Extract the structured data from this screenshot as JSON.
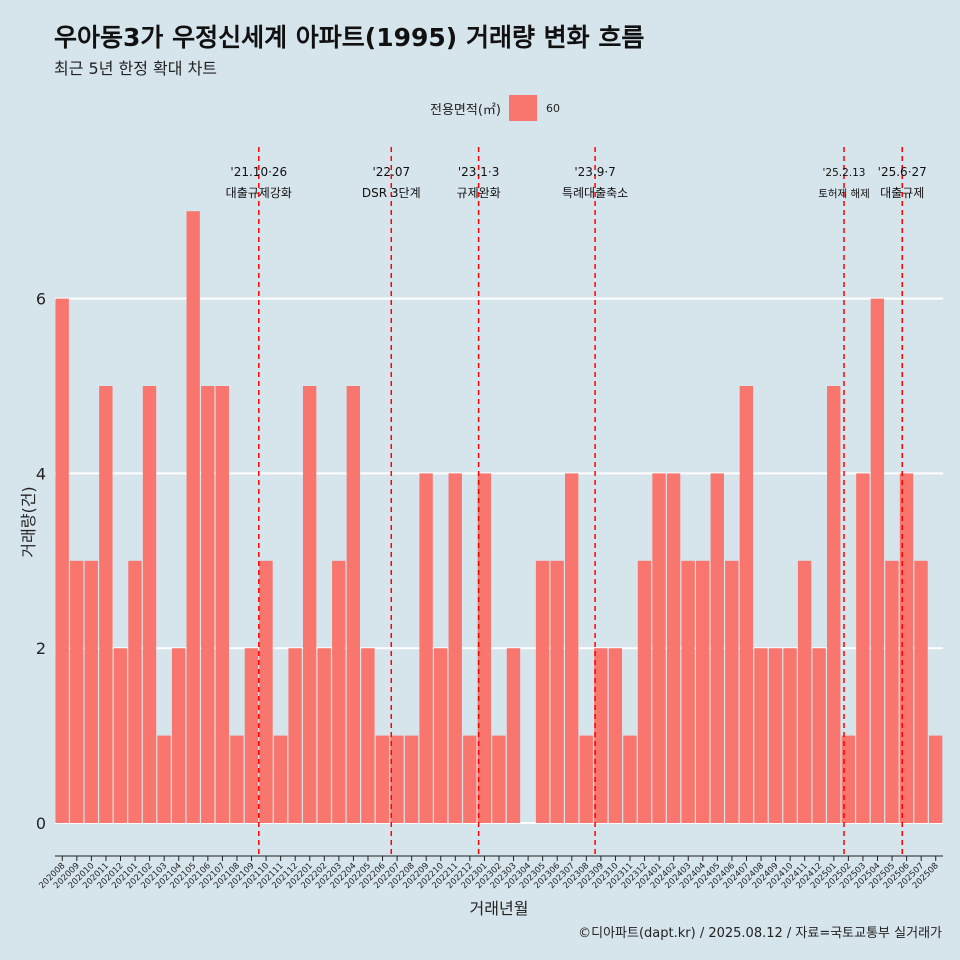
{
  "title": "우아동3가 우정신세계 아파트(1995) 거래량 변화 흐름",
  "subtitle": "최근 5년 한정 확대 차트",
  "caption": "©디아파트(dapt.kr) / 2025.08.12 / 자료=국토교통부 실거래가",
  "legend": {
    "title": "전용면적(㎡)",
    "items": [
      "60"
    ]
  },
  "colors": {
    "bar": "#f8766d",
    "background": "#d6e4ec",
    "grid": "#ffffff",
    "event_line": "#ff0000"
  },
  "chart_data": {
    "type": "bar",
    "xlabel": "거래년월",
    "ylabel": "거래량(건)",
    "ylim": [
      0,
      7
    ],
    "yticks": [
      0,
      2,
      4,
      6
    ],
    "grid": "horizontal",
    "legend_position": "top",
    "categories": [
      "202008",
      "202009",
      "202010",
      "202011",
      "202012",
      "202101",
      "202102",
      "202103",
      "202104",
      "202105",
      "202106",
      "202107",
      "202108",
      "202109",
      "202110",
      "202111",
      "202112",
      "202201",
      "202202",
      "202203",
      "202204",
      "202205",
      "202206",
      "202207",
      "202208",
      "202209",
      "202210",
      "202211",
      "202212",
      "202301",
      "202302",
      "202303",
      "202304",
      "202305",
      "202306",
      "202307",
      "202308",
      "202309",
      "202310",
      "202311",
      "202312",
      "202401",
      "202402",
      "202403",
      "202404",
      "202405",
      "202406",
      "202407",
      "202408",
      "202409",
      "202410",
      "202411",
      "202412",
      "202501",
      "202502",
      "202503",
      "202504",
      "202505",
      "202506",
      "202507",
      "202508"
    ],
    "series": [
      {
        "name": "60",
        "values": [
          6,
          3,
          3,
          5,
          2,
          3,
          5,
          1,
          2,
          7,
          5,
          5,
          1,
          2,
          3,
          1,
          2,
          5,
          2,
          3,
          5,
          2,
          1,
          1,
          1,
          4,
          2,
          4,
          1,
          4,
          1,
          2,
          0,
          3,
          3,
          4,
          1,
          2,
          2,
          1,
          3,
          4,
          4,
          3,
          3,
          4,
          3,
          5,
          2,
          2,
          2,
          3,
          2,
          5,
          1,
          4,
          6,
          3,
          4,
          3,
          1
        ]
      }
    ],
    "annotations": [
      {
        "x": 14.0,
        "date": "'21.10·26",
        "label": "대출규제강화"
      },
      {
        "x": 23.1,
        "date": "'22.07",
        "label": "DSR 3단계"
      },
      {
        "x": 29.1,
        "date": "'23.1·3",
        "label": "규제완화"
      },
      {
        "x": 37.1,
        "date": "'23.9·7",
        "label": "특례대출축소"
      },
      {
        "x": 54.2,
        "date": "'25.2.13",
        "label": "토허제 해제",
        "small": true
      },
      {
        "x": 58.2,
        "date": "'25.6·27",
        "label": "대출규제"
      }
    ]
  }
}
